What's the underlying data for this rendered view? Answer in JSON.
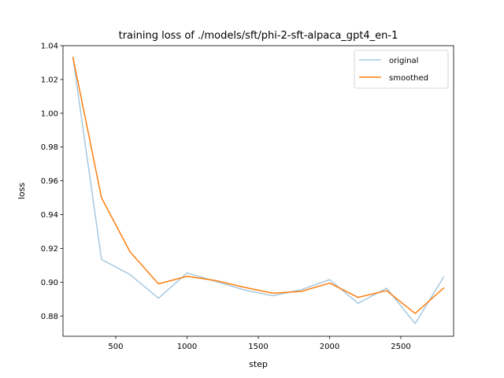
{
  "chart_data": {
    "type": "line",
    "title": "training loss of ./models/sft/phi-2-sft-alpaca_gpt4_en-1",
    "xlabel": "step",
    "ylabel": "loss",
    "xlim": [
      130,
      2870
    ],
    "ylim": [
      0.868,
      1.04
    ],
    "x_ticks": [
      500,
      1000,
      1500,
      2000,
      2500
    ],
    "y_ticks": [
      0.88,
      0.9,
      0.92,
      0.94,
      0.96,
      0.98,
      1.0,
      1.02,
      1.04
    ],
    "x_tick_labels": [
      "500",
      "1000",
      "1500",
      "2000",
      "2500"
    ],
    "y_tick_labels": [
      "0.88",
      "0.90",
      "0.92",
      "0.94",
      "0.96",
      "0.98",
      "1.00",
      "1.02",
      "1.04"
    ],
    "grid": false,
    "legend_position": "top-right",
    "x": [
      200,
      400,
      600,
      800,
      1000,
      1200,
      1400,
      1600,
      1800,
      2000,
      2200,
      2400,
      2600,
      2800
    ],
    "series": [
      {
        "name": "original",
        "color": "#a6c8e0",
        "values": [
          1.033,
          0.9135,
          0.9045,
          0.8905,
          0.9055,
          0.9005,
          0.8955,
          0.892,
          0.8955,
          0.9015,
          0.8875,
          0.8965,
          0.8755,
          0.903
        ]
      },
      {
        "name": "smoothed",
        "color": "#ff7f0e",
        "values": [
          1.033,
          0.95,
          0.918,
          0.899,
          0.9035,
          0.901,
          0.897,
          0.8935,
          0.8945,
          0.8995,
          0.891,
          0.895,
          0.8815,
          0.8965
        ]
      }
    ]
  }
}
